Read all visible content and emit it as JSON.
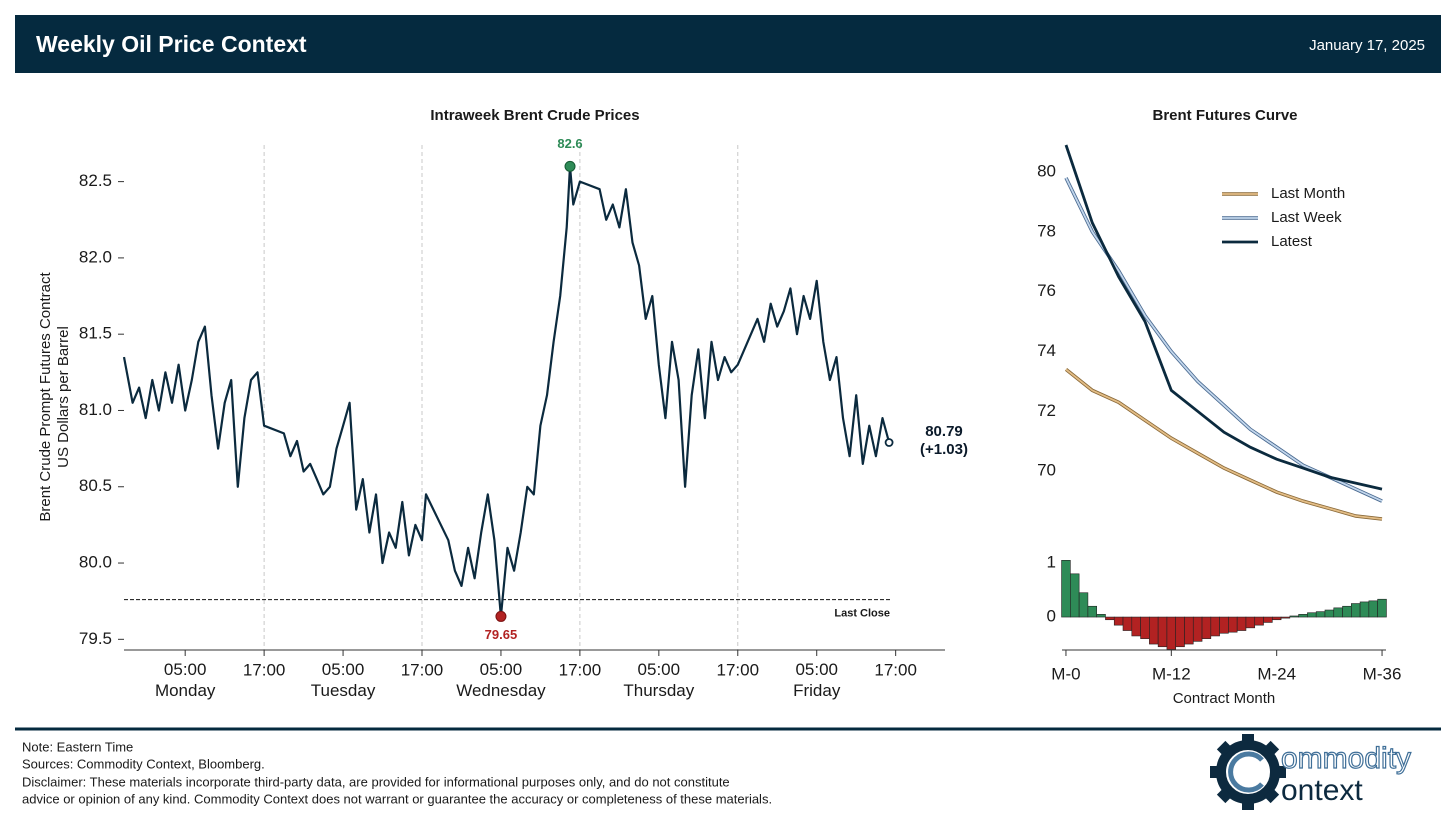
{
  "header": {
    "title": "Weekly Oil Price Context",
    "date": "January 17, 2025"
  },
  "chart_data": [
    {
      "type": "line",
      "title": "Intraweek Brent Crude Prices",
      "y_label": [
        "Brent Crude Prompt Futures Contract",
        "US Dollars per Barrel"
      ],
      "color": "#0b2a3e",
      "x": [
        -4.3,
        -3,
        -2,
        -1,
        0,
        1,
        2,
        3,
        4,
        5,
        6,
        7,
        8,
        9,
        10,
        11,
        12,
        13,
        14,
        15,
        16,
        17,
        20,
        21,
        22,
        23,
        24,
        25,
        26,
        27,
        28,
        29,
        30,
        31,
        32,
        33,
        34,
        35,
        36,
        37,
        38,
        39,
        40,
        41,
        41.6,
        45,
        46,
        47,
        48,
        49,
        50,
        51,
        52,
        53,
        54,
        55,
        56,
        57,
        58,
        59,
        60,
        61,
        62,
        63,
        63.5,
        64,
        65,
        68,
        69,
        70,
        71,
        72,
        73,
        74,
        75,
        76,
        77,
        78,
        79,
        80,
        81,
        82,
        83,
        84,
        85,
        86,
        87,
        88,
        89,
        92,
        93,
        94,
        95,
        96,
        97,
        98,
        99,
        100,
        101,
        102,
        103,
        104,
        105,
        106,
        107,
        108,
        109,
        110,
        111,
        112
      ],
      "values": [
        81.35,
        81.05,
        81.15,
        80.95,
        81.2,
        81.0,
        81.25,
        81.05,
        81.3,
        81.0,
        81.2,
        81.45,
        81.55,
        81.1,
        80.75,
        81.05,
        81.2,
        80.5,
        80.95,
        81.2,
        81.25,
        80.9,
        80.85,
        80.7,
        80.8,
        80.6,
        80.65,
        80.55,
        80.45,
        80.5,
        80.75,
        80.9,
        81.05,
        80.35,
        80.55,
        80.2,
        80.45,
        80.0,
        80.2,
        80.1,
        80.4,
        80.05,
        80.25,
        80.15,
        80.45,
        80.15,
        79.95,
        79.85,
        80.1,
        79.9,
        80.2,
        80.45,
        80.15,
        79.65,
        80.1,
        79.95,
        80.2,
        80.5,
        80.45,
        80.9,
        81.1,
        81.45,
        81.75,
        82.2,
        82.6,
        82.35,
        82.5,
        82.45,
        82.25,
        82.35,
        82.2,
        82.45,
        82.1,
        81.95,
        81.6,
        81.75,
        81.3,
        80.95,
        81.45,
        81.2,
        80.5,
        81.1,
        81.4,
        80.95,
        81.45,
        81.2,
        81.35,
        81.25,
        81.3,
        81.6,
        81.45,
        81.7,
        81.55,
        81.65,
        81.8,
        81.5,
        81.75,
        81.6,
        81.85,
        81.45,
        81.2,
        81.35,
        80.95,
        80.7,
        81.1,
        80.65,
        80.9,
        80.7,
        80.95,
        80.79
      ],
      "xlim": [
        -4.3,
        120.5
      ],
      "xticks": [
        {
          "value": 5,
          "label": "05:00\nMonday"
        },
        {
          "value": 17,
          "label": "17:00"
        },
        {
          "value": 29,
          "label": "05:00\nTuesday"
        },
        {
          "value": 41,
          "label": "17:00"
        },
        {
          "value": 53,
          "label": "05:00\nWednesday"
        },
        {
          "value": 65,
          "label": "17:00"
        },
        {
          "value": 77,
          "label": "05:00\nThursday"
        },
        {
          "value": 89,
          "label": "17:00"
        },
        {
          "value": 101,
          "label": "05:00\nFriday"
        },
        {
          "value": 113,
          "label": "17:00"
        }
      ],
      "x_gridlines": [
        17,
        41,
        65,
        89
      ],
      "ylim": [
        79.43,
        82.74
      ],
      "yticks": [
        {
          "value": 79.5,
          "label": "79.5"
        },
        {
          "value": 80,
          "label": "80.0"
        },
        {
          "value": 80.5,
          "label": "80.5"
        },
        {
          "value": 81,
          "label": "81.0"
        },
        {
          "value": 81.5,
          "label": "81.5"
        },
        {
          "value": 82,
          "label": "82.0"
        },
        {
          "value": 82.5,
          "label": "82.5"
        }
      ],
      "max_point": {
        "x": 63.5,
        "value": 82.6,
        "color": "#2e8b57"
      },
      "min_point": {
        "x": 53,
        "value": 79.65,
        "color": "#b22222"
      },
      "last_close": {
        "value": 79.76,
        "label": "Last Close"
      },
      "last_value": 80.79,
      "change_label": "(+1.03)"
    },
    {
      "type": "line",
      "title": "Brent Futures Curve",
      "x": [
        0,
        3,
        6,
        9,
        12,
        15,
        18,
        21,
        24,
        27,
        30,
        33,
        36
      ],
      "series": [
        {
          "name": "Last Month",
          "color": "#e3bd86",
          "edge_color": "#8a6a3a",
          "values": [
            73.4,
            72.7,
            72.3,
            71.7,
            71.1,
            70.6,
            70.1,
            69.7,
            69.3,
            69.0,
            68.75,
            68.5,
            68.4
          ]
        },
        {
          "name": "Last Week",
          "color": "#c2d6ec",
          "edge_color": "#4a6a90",
          "values": [
            79.8,
            78.0,
            76.7,
            75.2,
            74.0,
            73.0,
            72.2,
            71.4,
            70.8,
            70.2,
            69.8,
            69.4,
            69.0
          ]
        },
        {
          "name": "Latest",
          "color": "#0b2a3e",
          "values": [
            80.9,
            78.3,
            76.5,
            75.0,
            72.7,
            72.0,
            71.3,
            70.8,
            70.4,
            70.1,
            69.8,
            69.6,
            69.4
          ]
        }
      ],
      "xlim": [
        -0.45,
        36.45
      ],
      "ylim": [
        68.2,
        80.9
      ],
      "yticks": [
        70,
        72,
        74,
        76,
        78,
        80
      ],
      "legend": "upper right"
    },
    {
      "type": "bar",
      "x": [
        0,
        1,
        2,
        3,
        4,
        5,
        6,
        7,
        8,
        9,
        10,
        11,
        12,
        13,
        14,
        15,
        16,
        17,
        18,
        19,
        20,
        21,
        22,
        23,
        24,
        25,
        26,
        27,
        28,
        29,
        30,
        31,
        32,
        33,
        34,
        35,
        36
      ],
      "values": [
        1.05,
        0.8,
        0.45,
        0.2,
        0.05,
        -0.05,
        -0.15,
        -0.25,
        -0.35,
        -0.4,
        -0.5,
        -0.55,
        -0.6,
        -0.55,
        -0.5,
        -0.45,
        -0.4,
        -0.35,
        -0.3,
        -0.28,
        -0.25,
        -0.2,
        -0.15,
        -0.1,
        -0.05,
        -0.02,
        0.02,
        0.05,
        0.08,
        0.1,
        0.13,
        0.17,
        0.2,
        0.25,
        0.28,
        0.3,
        0.33
      ],
      "positive_color": "#2e8b57",
      "negative_color": "#b22222",
      "x_label": "Contract Month",
      "xlim": [
        -0.45,
        36.45
      ],
      "xticks": [
        {
          "value": 0,
          "label": "M-0"
        },
        {
          "value": 12,
          "label": "M-12"
        },
        {
          "value": 24,
          "label": "M-24"
        },
        {
          "value": 36,
          "label": "M-36"
        }
      ],
      "ylim": [
        -0.61,
        1.13
      ],
      "yticks": [
        0,
        1
      ]
    }
  ],
  "footer": {
    "lines": [
      "Note: Eastern Time",
      "Sources: Commodity Context, Bloomberg.",
      "Disclaimer: These materials incorporate third-party data, are provided for informational purposes only, and do not constitute",
      "advice or opinion of any kind. Commodity Context does not warrant or guarantee the accuracy or completeness of these materials."
    ],
    "logo_top": "ommodity",
    "logo_bottom": "ontext"
  }
}
